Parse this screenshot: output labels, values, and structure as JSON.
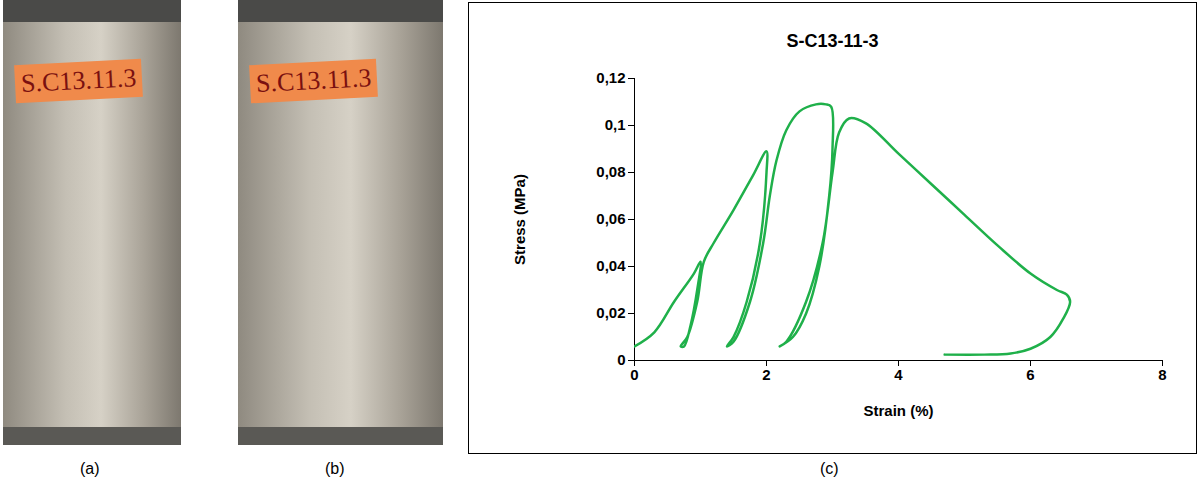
{
  "chart_data": {
    "type": "line",
    "title": "S-C13-11-3",
    "x_label": "Strain (%)",
    "y_label": "Stress (MPa)",
    "x": [
      0,
      0.3,
      0.6,
      0.9,
      1.0,
      0.95,
      0.85,
      0.75,
      0.7,
      0.8,
      0.95,
      1.05,
      1.2,
      1.5,
      1.8,
      2.0,
      2.0,
      1.9,
      1.7,
      1.5,
      1.4,
      1.5,
      1.75,
      1.95,
      2.05,
      2.15,
      2.3,
      2.5,
      2.75,
      2.9,
      2.98,
      3.0,
      2.95,
      2.8,
      2.6,
      2.4,
      2.2,
      2.3,
      2.6,
      2.85,
      3.0,
      3.1,
      3.25,
      3.5,
      4.0,
      4.5,
      5.0,
      5.5,
      6.0,
      6.4,
      6.55,
      6.6,
      6.5,
      6.3,
      6.0,
      5.7,
      5.3,
      4.7
    ],
    "values": [
      0.006,
      0.012,
      0.025,
      0.037,
      0.042,
      0.03,
      0.015,
      0.006,
      0.006,
      0.01,
      0.025,
      0.042,
      0.05,
      0.064,
      0.079,
      0.089,
      0.08,
      0.05,
      0.025,
      0.01,
      0.006,
      0.008,
      0.025,
      0.05,
      0.07,
      0.085,
      0.098,
      0.106,
      0.109,
      0.109,
      0.108,
      0.09,
      0.07,
      0.04,
      0.02,
      0.01,
      0.006,
      0.008,
      0.025,
      0.05,
      0.08,
      0.097,
      0.103,
      0.101,
      0.088,
      0.075,
      0.062,
      0.049,
      0.037,
      0.03,
      0.028,
      0.025,
      0.018,
      0.01,
      0.005,
      0.003,
      0.0025,
      0.0025
    ],
    "color": "#1fb04a",
    "xlim": [
      0,
      8
    ],
    "xticks": [
      0,
      2,
      4,
      6,
      8
    ],
    "ylim": [
      0,
      0.12
    ],
    "yticks": [
      0,
      {
        "value": 0.02,
        "label": "0,02"
      },
      {
        "value": 0.04,
        "label": "0,04"
      },
      {
        "value": 0.06,
        "label": "0,06"
      },
      {
        "value": 0.08,
        "label": "0,08"
      },
      {
        "value": 0.1,
        "label": "0,1"
      },
      {
        "value": 0.12,
        "label": "0,12"
      }
    ],
    "grid": false
  },
  "panels": [
    {
      "label": "(a)",
      "photo_text": "S.C13.11.3"
    },
    {
      "label": "(b)",
      "photo_text": "S.C13.11.3"
    },
    {
      "label": "(c)"
    }
  ]
}
